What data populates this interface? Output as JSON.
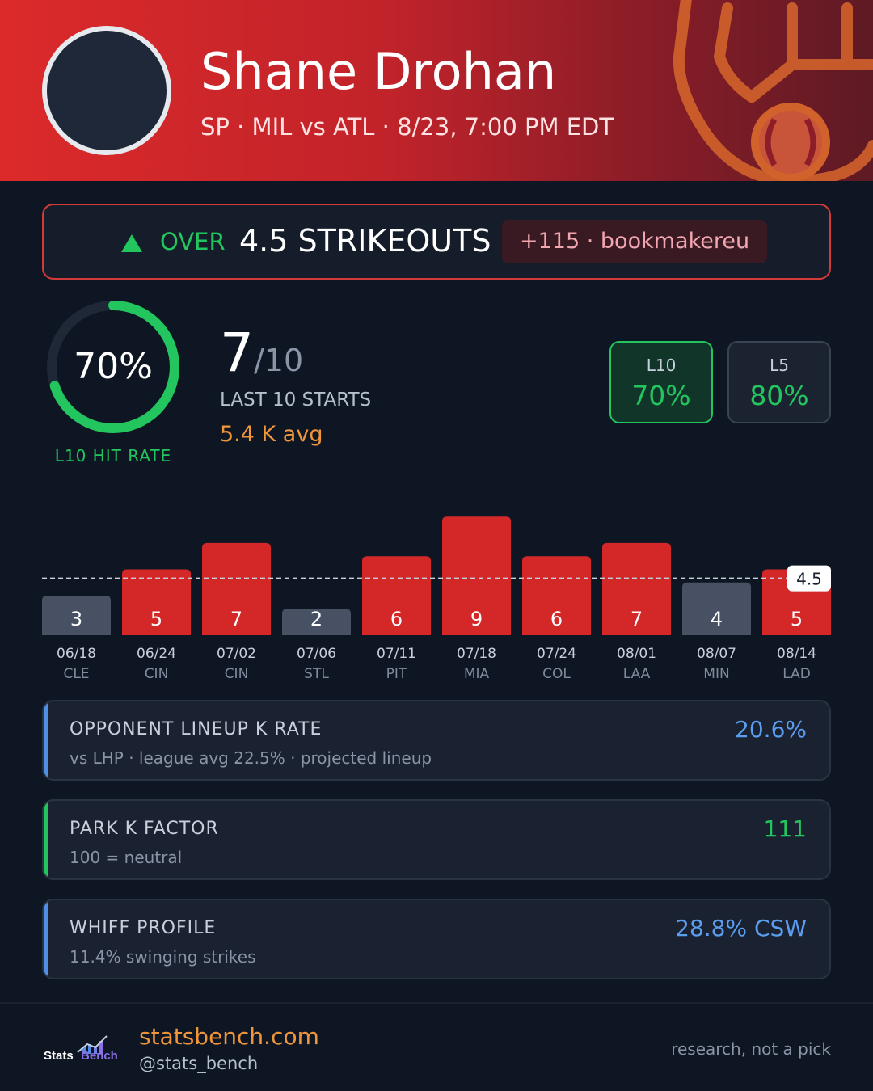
{
  "header": {
    "player_name": "Shane Drohan",
    "player_meta": "SP · MIL vs ATL · 8/23, 7:00 PM EDT",
    "team_logo_icon": "glove-ball-logo"
  },
  "prop": {
    "direction": "OVER",
    "market": "4.5 STRIKEOUTS",
    "odds": "+115 · bookmakereu",
    "direction_icon": "triangle-up-icon"
  },
  "hit_rate": {
    "percent_label": "70%",
    "fraction": 0.7,
    "label": "L10 HIT RATE",
    "hits": "7",
    "of": "/10",
    "starts_label": "LAST 10 STARTS",
    "avg_label": "5.4 K avg"
  },
  "splits": [
    {
      "label": "L10",
      "value": "70%"
    },
    {
      "label": "L5",
      "value": "80%"
    }
  ],
  "chart_data": {
    "type": "bar",
    "line": 4.5,
    "line_label": "4.5",
    "categories": [
      "06/18",
      "06/24",
      "07/02",
      "07/06",
      "07/11",
      "07/18",
      "07/24",
      "08/01",
      "08/07",
      "08/14"
    ],
    "opponents": [
      "CLE",
      "CIN",
      "CIN",
      "STL",
      "PIT",
      "MIA",
      "COL",
      "LAA",
      "MIN",
      "LAD"
    ],
    "values": [
      3,
      5,
      7,
      2,
      6,
      9,
      6,
      7,
      4,
      5
    ],
    "colors": {
      "over": "#d42828",
      "under": "#475163"
    },
    "ylim": [
      0,
      9
    ]
  },
  "info_cards": [
    {
      "title": "OPPONENT LINEUP K RATE",
      "sub": "vs LHP · league avg 22.5% · projected lineup",
      "value": "20.6%",
      "accent": "#4f8fe6",
      "value_color": "#5b9ef0"
    },
    {
      "title": "PARK K FACTOR",
      "sub": "100 = neutral",
      "value": "111",
      "accent": "#22c55e",
      "value_color": "#22c55e"
    },
    {
      "title": "WHIFF PROFILE",
      "sub": "11.4% swinging strikes",
      "value": "28.8% CSW",
      "accent": "#4f8fe6",
      "value_color": "#5b9ef0"
    }
  ],
  "footer": {
    "brand": "StatsBench",
    "site": "statsbench.com",
    "handle": "@stats_bench",
    "disclaimer": "research, not a pick"
  },
  "colors": {
    "accent_green": "#22c55e",
    "accent_orange": "#f0953a",
    "header_red": "#dc2a2a"
  }
}
